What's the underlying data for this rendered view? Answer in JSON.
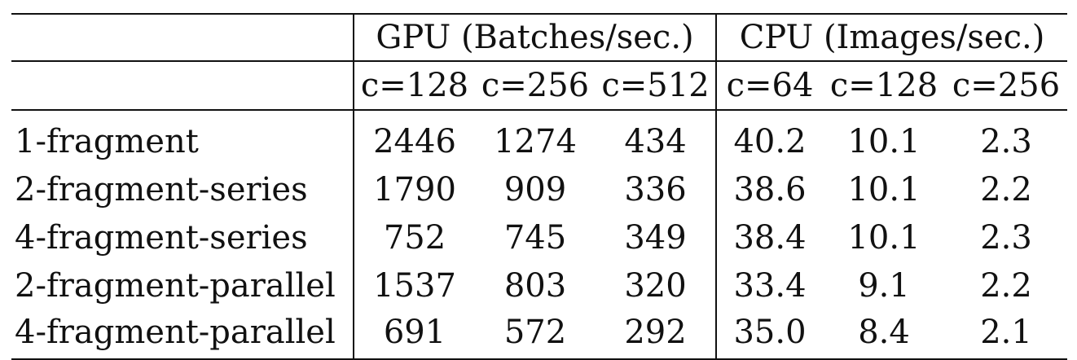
{
  "table": {
    "groups": [
      {
        "label": "GPU (Batches/sec.)",
        "sub": [
          "c=128",
          "c=256",
          "c=512"
        ]
      },
      {
        "label": "CPU (Images/sec.)",
        "sub": [
          "c=64",
          "c=128",
          "c=256"
        ]
      }
    ],
    "rows": [
      {
        "label": "1-fragment",
        "values": [
          "2446",
          "1274",
          "434",
          "40.2",
          "10.1",
          "2.3"
        ]
      },
      {
        "label": "2-fragment-series",
        "values": [
          "1790",
          "909",
          "336",
          "38.6",
          "10.1",
          "2.2"
        ]
      },
      {
        "label": "4-fragment-series",
        "values": [
          "752",
          "745",
          "349",
          "38.4",
          "10.1",
          "2.3"
        ]
      },
      {
        "label": "2-fragment-parallel",
        "values": [
          "1537",
          "803",
          "320",
          "33.4",
          "9.1",
          "2.2"
        ]
      },
      {
        "label": "4-fragment-parallel",
        "values": [
          "691",
          "572",
          "292",
          "35.0",
          "8.4",
          "2.1"
        ]
      }
    ]
  }
}
